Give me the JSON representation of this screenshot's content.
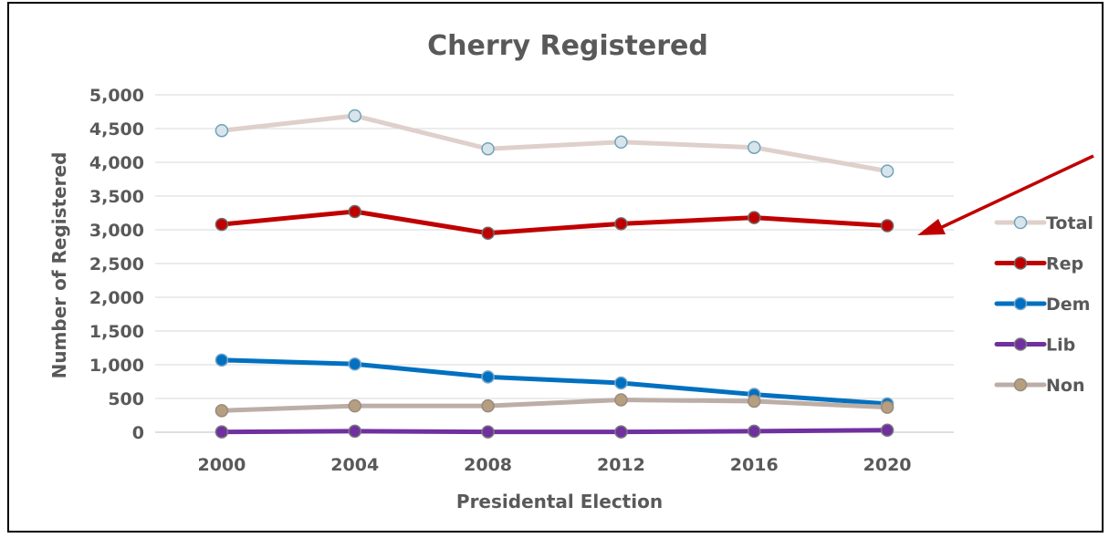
{
  "chart_data": {
    "type": "line",
    "title": "Cherry Registered",
    "xlabel": "Presidental Election",
    "ylabel": "Number of Registered",
    "categories": [
      "2000",
      "2004",
      "2008",
      "2012",
      "2016",
      "2020"
    ],
    "ylim": [
      0,
      5000
    ],
    "yticks": [
      0,
      500,
      1000,
      1500,
      2000,
      2500,
      3000,
      3500,
      4000,
      4500,
      5000
    ],
    "ytick_labels": [
      "0",
      "500",
      "1,000",
      "1,500",
      "2,000",
      "2,500",
      "3,000",
      "3,500",
      "4,000",
      "4,500",
      "5,000"
    ],
    "grid": true,
    "legend_position": "right",
    "annotation": "arrow pointing to Rep series",
    "series": [
      {
        "name": "Total",
        "values": [
          4470,
          4690,
          4200,
          4300,
          4220,
          3870
        ],
        "color": "#dfd0cc",
        "marker": "#d8e4ec",
        "marker_edge": "#6fa3b6"
      },
      {
        "name": "Rep",
        "values": [
          3080,
          3270,
          2950,
          3090,
          3180,
          3060
        ],
        "color": "#c00000",
        "marker": "#c00000",
        "marker_edge": "#6d6d6d"
      },
      {
        "name": "Dem",
        "values": [
          1070,
          1010,
          820,
          730,
          560,
          420
        ],
        "color": "#0070c0",
        "marker": "#0070c0",
        "marker_edge": "#7aa6c8"
      },
      {
        "name": "Lib",
        "values": [
          5,
          15,
          5,
          5,
          15,
          30
        ],
        "color": "#7030a0",
        "marker": "#7030a0",
        "marker_edge": "#7a7a7a"
      },
      {
        "name": "Non",
        "values": [
          320,
          390,
          390,
          480,
          460,
          370
        ],
        "color": "#bcaea7",
        "marker": "#b59f80",
        "marker_edge": "#9a8a80"
      }
    ],
    "arrow_color": "#c00000"
  }
}
